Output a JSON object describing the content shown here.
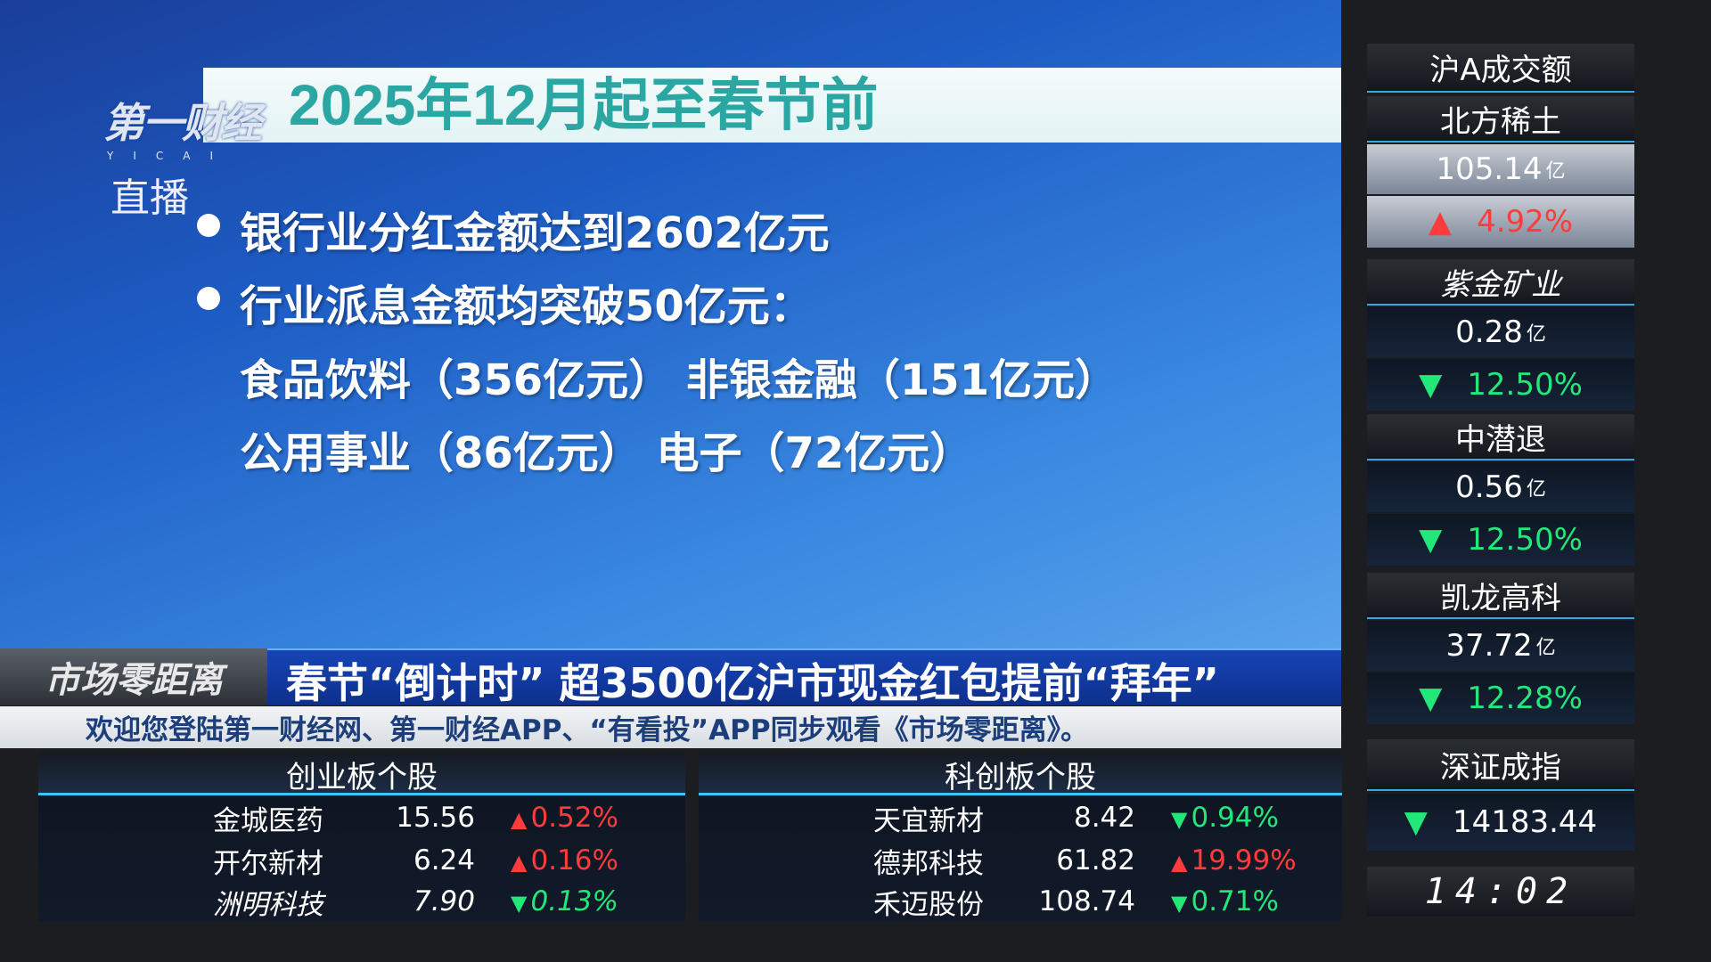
{
  "colors": {
    "up": "#ff3b3b",
    "down": "#22e87a",
    "title": "#2aa7a2"
  },
  "brand": {
    "logo": "第一财经",
    "logo_sub": "YICAI",
    "live": "直播"
  },
  "slide": {
    "title": "2025年12月起至春节前",
    "lines": [
      "银行业分红金额达到2602亿元",
      "行业派息金额均突破50亿元：",
      "食品饮料（356亿元） 非银金融（151亿元）",
      "公用事业（86亿元） 电子（72亿元）"
    ]
  },
  "lower_third": {
    "show": "市场零距离",
    "headline": "春节“倒计时” 超3500亿沪市现金红包提前“拜年”",
    "ticker": "欢迎您登陆第一财经网、第一财经APP、“有看投”APP同步观看《市场零距离》。"
  },
  "panels": [
    {
      "title": "创业板个股",
      "rows": [
        {
          "name": "金城医药",
          "price": "15.56",
          "change": "0.52%",
          "dir": "up"
        },
        {
          "name": "开尔新材",
          "price": "6.24",
          "change": "0.16%",
          "dir": "up"
        },
        {
          "name": "洲明科技",
          "price": "7.90",
          "change": "0.13%",
          "dir": "down"
        }
      ]
    },
    {
      "title": "科创板个股",
      "rows": [
        {
          "name": "天宜新材",
          "price": "8.42",
          "change": "0.94%",
          "dir": "down"
        },
        {
          "name": "德邦科技",
          "price": "61.82",
          "change": "19.99%",
          "dir": "up"
        },
        {
          "name": "禾迈股份",
          "price": "108.74",
          "change": "0.71%",
          "dir": "down"
        }
      ]
    }
  ],
  "sidebar": {
    "title": "沪A成交额",
    "unit": "亿",
    "stocks": [
      {
        "name": "北方稀土",
        "amount": "105.14",
        "change": "4.92%",
        "dir": "up"
      },
      {
        "name": "紫金矿业",
        "amount": "0.28",
        "change": "12.50%",
        "dir": "down"
      },
      {
        "name": "中潜退",
        "amount": "0.56",
        "change": "12.50%",
        "dir": "down"
      },
      {
        "name": "凯龙高科",
        "amount": "37.72",
        "change": "12.28%",
        "dir": "down"
      }
    ],
    "index": {
      "name": "深证成指",
      "value": "14183.44",
      "dir": "down"
    },
    "time": "14:02"
  }
}
